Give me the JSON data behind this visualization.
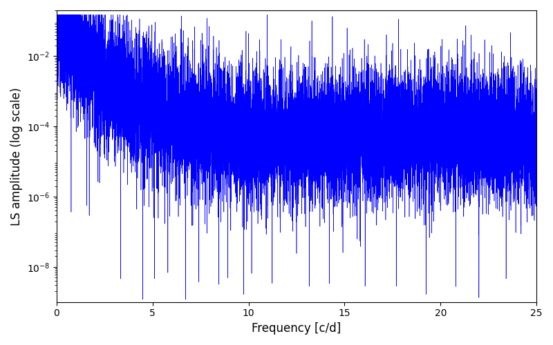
{
  "title": "",
  "xlabel": "Frequency [c/d]",
  "ylabel": "LS amplitude (log scale)",
  "xlim": [
    0,
    25
  ],
  "ylim_log": [
    1e-09,
    0.2
  ],
  "line_color": "#0000ff",
  "line_width": 0.4,
  "figsize": [
    8.0,
    5.0
  ],
  "dpi": 100,
  "freq_max": 25.0,
  "n_points": 15000,
  "background_color": "#ffffff",
  "yticks": [
    1e-08,
    1e-06,
    0.0001,
    0.01
  ],
  "xticks": [
    0,
    5,
    10,
    15,
    20,
    25
  ]
}
